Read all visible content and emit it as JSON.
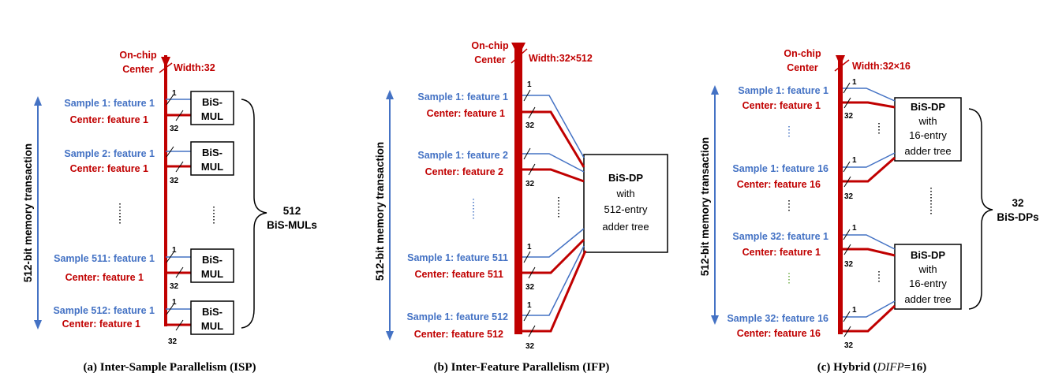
{
  "colors": {
    "blue": "#4472c4",
    "red": "#c00000",
    "dotted_blue": "#4472c4",
    "dotted_green": "#70ad47"
  },
  "panel_a": {
    "center_label_1": "On-chip",
    "center_label_2": "Center",
    "width_label": "Width:32",
    "vertical_label": "512-bit memory transaction",
    "rows": [
      {
        "sample": "Sample 1: feature 1",
        "center": "Center: feature 1"
      },
      {
        "sample": "Sample 2:  feature 1",
        "center": "Center: feature 1"
      },
      {
        "sample": "Sample 511: feature 1",
        "center": "Center: feature 1"
      },
      {
        "sample": "Sample 512: feature 1",
        "center": "Center: feature 1"
      }
    ],
    "bit_1": "1",
    "bit_32": "32",
    "unit_line1": "BiS-",
    "unit_line2": "MUL",
    "total_count": "512",
    "total_label": "BiS-MULs",
    "caption": "(a) Inter-Sample Parallelism (ISP)"
  },
  "panel_b": {
    "center_label_1": "On-chip",
    "center_label_2": "Center",
    "width_label": "Width:32×512",
    "vertical_label": "512-bit memory transaction",
    "rows": [
      {
        "sample": "Sample 1: feature 1",
        "center": "Center: feature 1"
      },
      {
        "sample": "Sample 1: feature 2",
        "center": "Center: feature 2"
      },
      {
        "sample": "Sample 1: feature 511",
        "center": "Center: feature 511"
      },
      {
        "sample": "Sample 1: feature 512",
        "center": "Center: feature 512"
      }
    ],
    "bit_1": "1",
    "bit_32": "32",
    "unit_line1": "BiS-DP",
    "unit_line2": "with",
    "unit_line3": "512-entry",
    "unit_line4": "adder tree",
    "caption": "(b) Inter-Feature Parallelism (IFP)"
  },
  "panel_c": {
    "center_label_1": "On-chip",
    "center_label_2": "Center",
    "width_label": "Width:32×16",
    "vertical_label": "512-bit memory transaction",
    "rows": [
      {
        "sample": "Sample 1: feature 1",
        "center": "Center: feature 1"
      },
      {
        "sample": "Sample 1: feature 16",
        "center": "Center: feature 16"
      },
      {
        "sample": "Sample 32: feature 1",
        "center": "Center: feature 1"
      },
      {
        "sample": "Sample 32: feature 16",
        "center": "Center: feature 16"
      }
    ],
    "bit_1": "1",
    "bit_32": "32",
    "unit_line1": "BiS-DP",
    "unit_line2": "with",
    "unit_line3": "16-entry",
    "unit_line4": "adder tree",
    "total_count": "32",
    "total_label": "BiS-DPs",
    "caption_main": "(c) Hybrid (",
    "caption_var": "DIFP",
    "caption_end": "=16)"
  }
}
